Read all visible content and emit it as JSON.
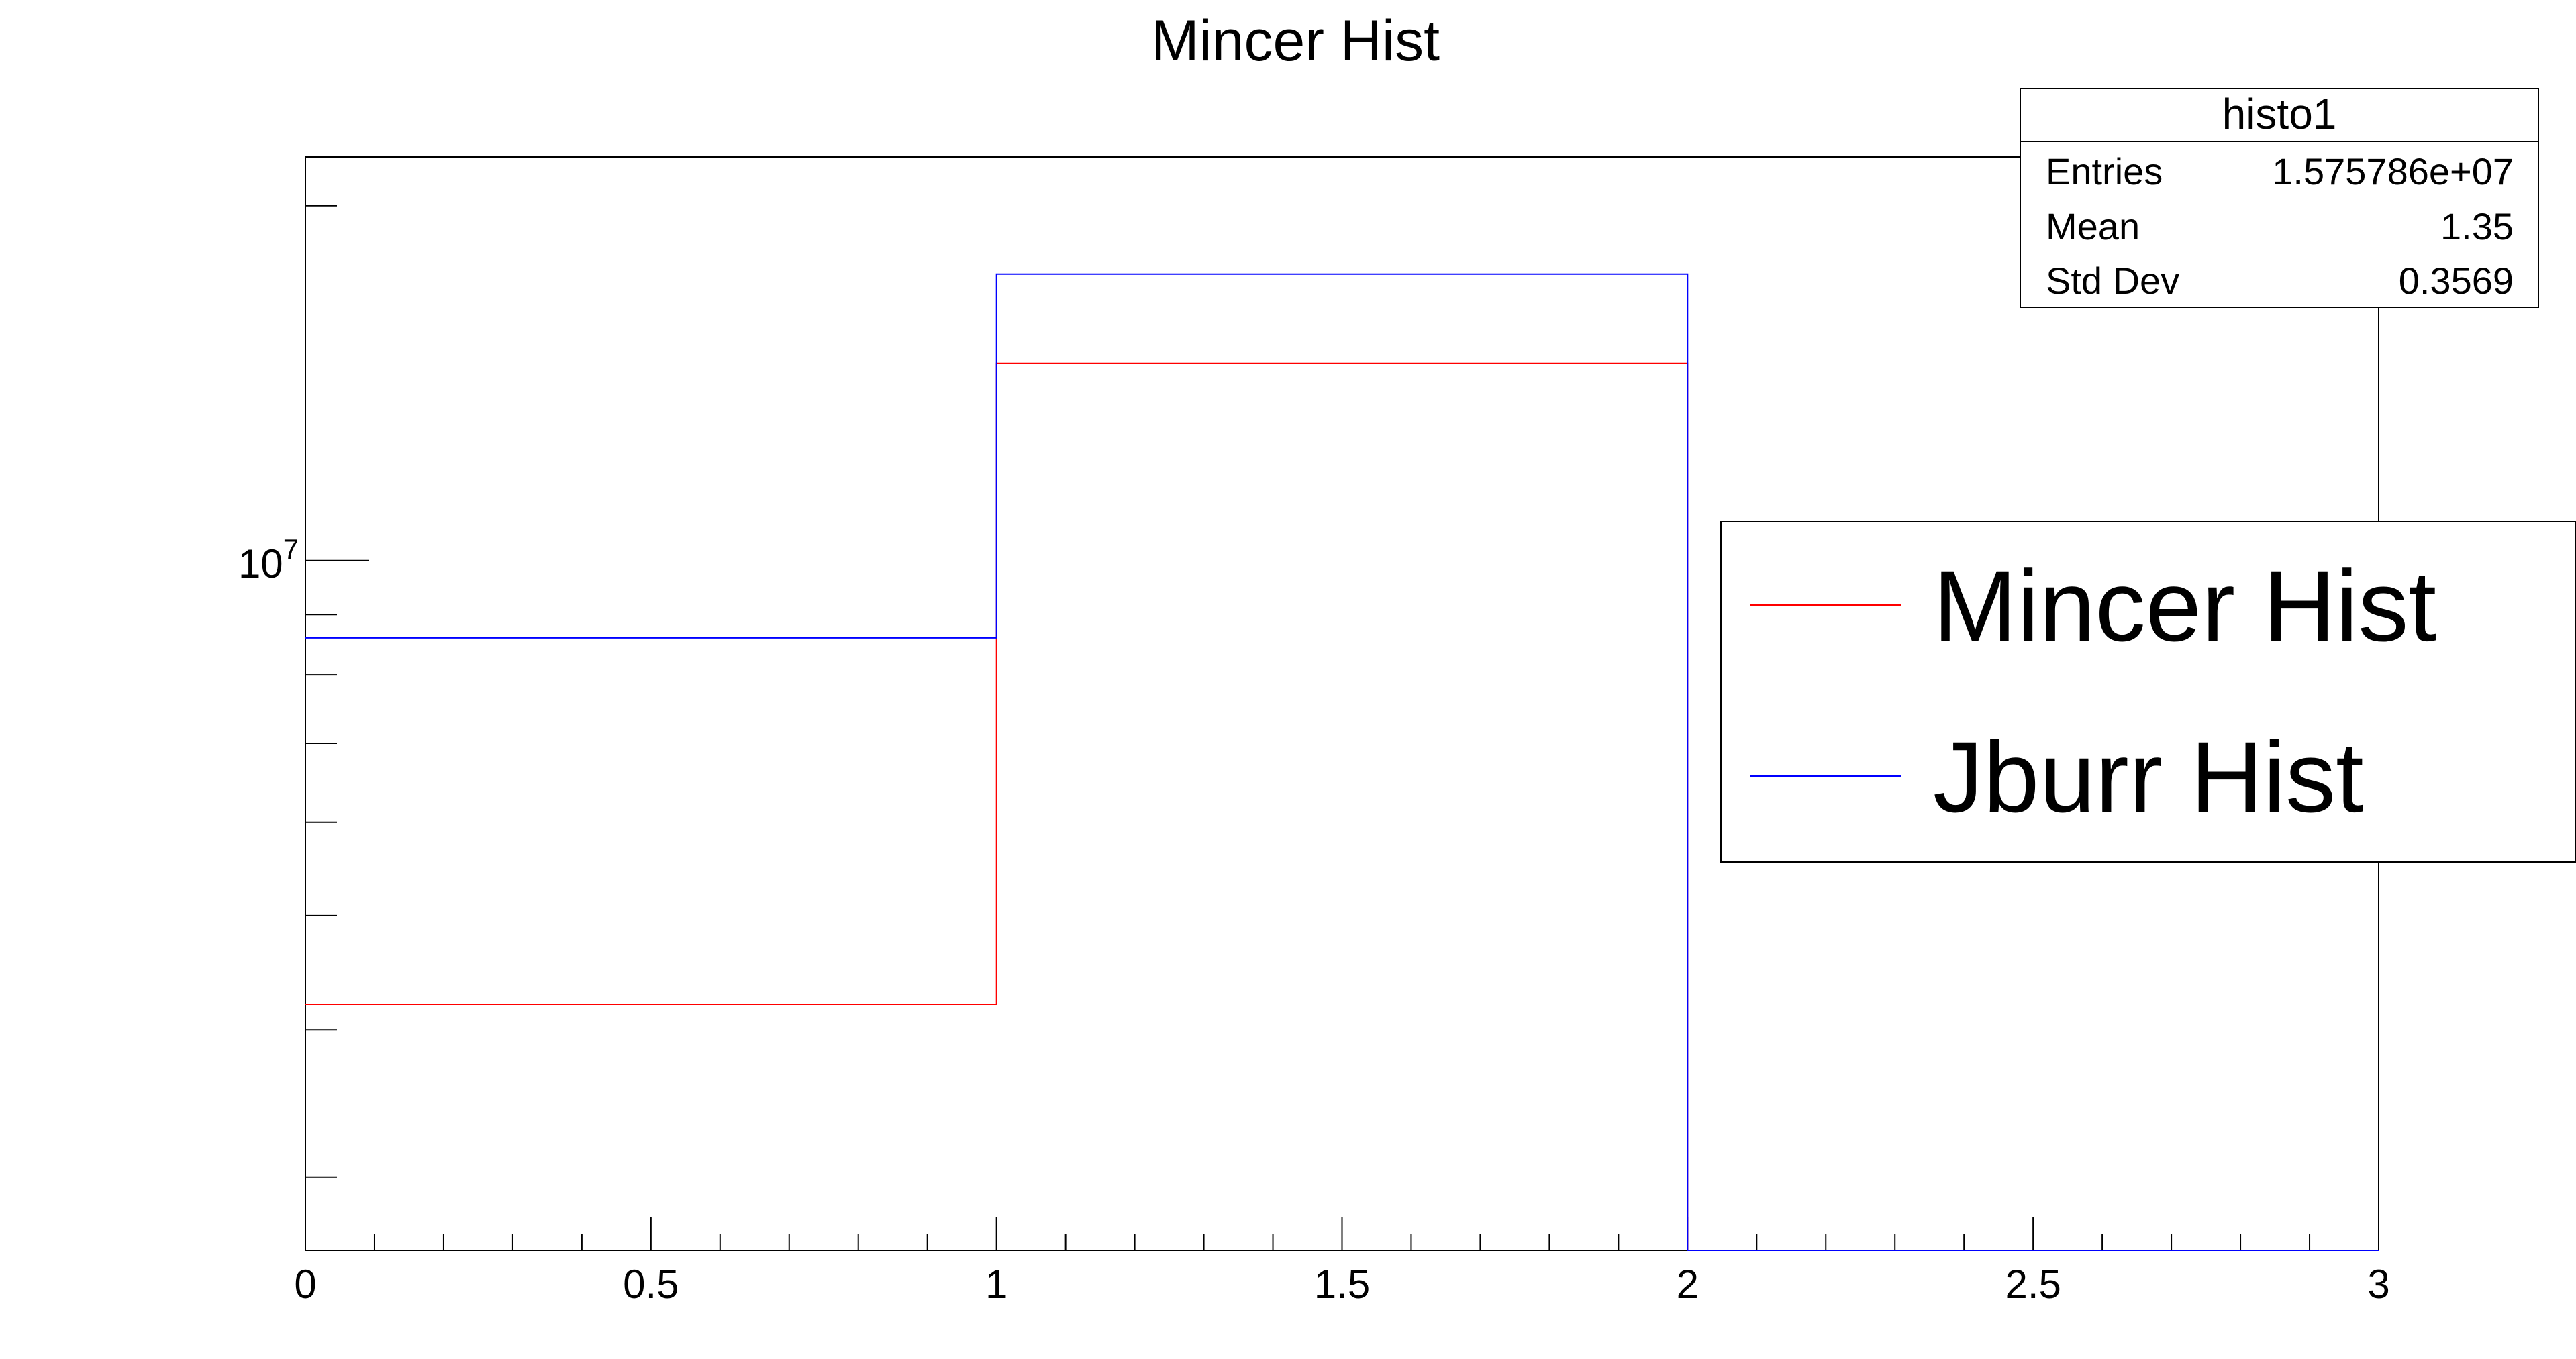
{
  "title": "Mincer Hist",
  "colors": {
    "background": "#ffffff",
    "axis": "#000000",
    "mincer_series": "#ff0000",
    "jburr_series": "#0000ff"
  },
  "stats_box": {
    "title": "histo1",
    "rows": [
      {
        "label": "Entries",
        "value": "1.575786e+07"
      },
      {
        "label": "Mean",
        "value": "1.35"
      },
      {
        "label": "Std Dev",
        "value": "0.3569"
      }
    ]
  },
  "legend": {
    "placement": "right",
    "entries": [
      {
        "label": "Mincer Hist",
        "color": "#ff0000"
      },
      {
        "label": "Jburr Hist",
        "color": "#0000ff"
      }
    ]
  },
  "chart_data": {
    "type": "histogram",
    "title": "Mincer Hist",
    "xlabel": "",
    "ylabel": "",
    "xlim": [
      0,
      3
    ],
    "ylim": [
      2600000,
      22000000
    ],
    "yscale": "log",
    "x_ticks": [
      "0",
      "0.5",
      "1",
      "1.5",
      "2",
      "2.5",
      "3"
    ],
    "y_tick_label": {
      "base": "10",
      "exponent": "7"
    },
    "bin_edges": [
      0,
      1,
      2,
      3
    ],
    "series": [
      {
        "name": "Mincer Hist",
        "color": "#ff0000",
        "values": [
          4200000,
          14700000,
          0
        ]
      },
      {
        "name": "Jburr Hist",
        "color": "#0000ff",
        "values": [
          8600000,
          17500000,
          0
        ]
      }
    ],
    "grid": false
  }
}
